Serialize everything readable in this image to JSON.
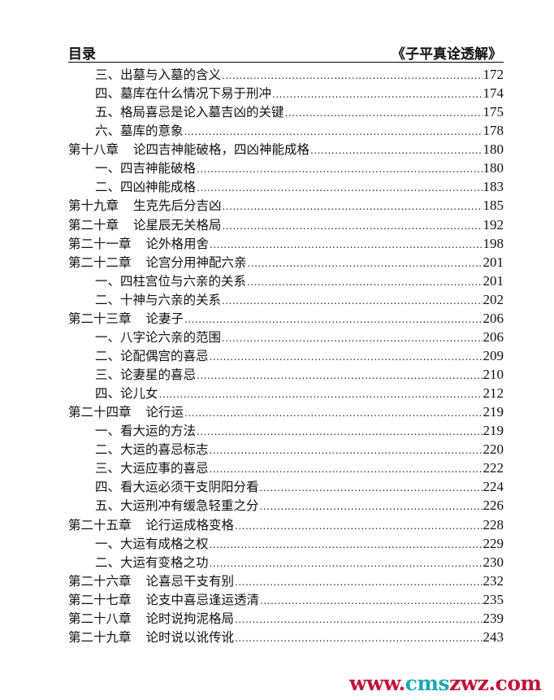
{
  "header": {
    "left": "目录",
    "right": "《子平真诠透解》"
  },
  "toc": [
    {
      "level": 2,
      "title": "三、出墓与入墓的含义",
      "page": "172"
    },
    {
      "level": 2,
      "title": "四、墓库在什么情况下易于刑冲",
      "page": "174"
    },
    {
      "level": 2,
      "title": "五、格局喜忌是论入墓吉凶的关键",
      "page": "175"
    },
    {
      "level": 2,
      "title": "六、墓库的意象",
      "page": "178"
    },
    {
      "level": 1,
      "chapter": "第十八章",
      "title": "论四吉神能破格，四凶神能成格",
      "page": "180"
    },
    {
      "level": 2,
      "title": "一、四吉神能破格",
      "page": "180"
    },
    {
      "level": 2,
      "title": "二、四凶神能成格",
      "page": "183"
    },
    {
      "level": 1,
      "chapter": "第十九章",
      "title": "生克先后分吉凶",
      "page": "185"
    },
    {
      "level": 1,
      "chapter": "第二十章",
      "title": "论星辰无关格局",
      "page": "192"
    },
    {
      "level": 1,
      "chapter": "第二十一章",
      "title": "论外格用舍",
      "page": "198"
    },
    {
      "level": 1,
      "chapter": "第二十二章",
      "title": "论宫分用神配六亲",
      "page": "201"
    },
    {
      "level": 2,
      "title": "一、四柱宫位与六亲的关系",
      "page": "201"
    },
    {
      "level": 2,
      "title": "二、十神与六亲的关系",
      "page": "202"
    },
    {
      "level": 1,
      "chapter": "第二十三章",
      "title": "论妻子",
      "page": "206"
    },
    {
      "level": 2,
      "title": "一、八字论六亲的范围",
      "page": "206"
    },
    {
      "level": 2,
      "title": "二、论配偶宫的喜忌",
      "page": "209"
    },
    {
      "level": 2,
      "title": "三、论妻星的喜忌",
      "page": "210"
    },
    {
      "level": 2,
      "title": "四、论儿女",
      "page": "212"
    },
    {
      "level": 1,
      "chapter": "第二十四章",
      "title": "论行运",
      "page": "219"
    },
    {
      "level": 2,
      "title": "一、看大运的方法",
      "page": "219"
    },
    {
      "level": 2,
      "title": "二、大运的喜忌标志",
      "page": "220"
    },
    {
      "level": 2,
      "title": "三、大运应事的喜忌",
      "page": "222"
    },
    {
      "level": 2,
      "title": "四、看大运必须干支阴阳分看",
      "page": "224"
    },
    {
      "level": 2,
      "title": "五、大运刑冲有缓急轻重之分",
      "page": "226"
    },
    {
      "level": 1,
      "chapter": "第二十五章",
      "title": "论行运成格变格",
      "page": "228"
    },
    {
      "level": 2,
      "title": "一、大运有成格之权",
      "page": "229"
    },
    {
      "level": 2,
      "title": "二、大运有变格之功",
      "page": "230"
    },
    {
      "level": 1,
      "chapter": "第二十六章",
      "title": "论喜忌干支有别",
      "page": "232"
    },
    {
      "level": 1,
      "chapter": "第二十七章",
      "title": "论支中喜忌逢运透清",
      "page": "235"
    },
    {
      "level": 1,
      "chapter": "第二十八章",
      "title": "论时说拘泥格局",
      "page": "239"
    },
    {
      "level": 1,
      "chapter": "第二十九章",
      "title": "论时说以讹传讹",
      "page": "243"
    }
  ],
  "watermark": {
    "part1": "www.",
    "part2": "cms",
    "part3": "zwz.com",
    "colors": {
      "red": "#c0143c",
      "teal": "#1aa7b3"
    }
  }
}
